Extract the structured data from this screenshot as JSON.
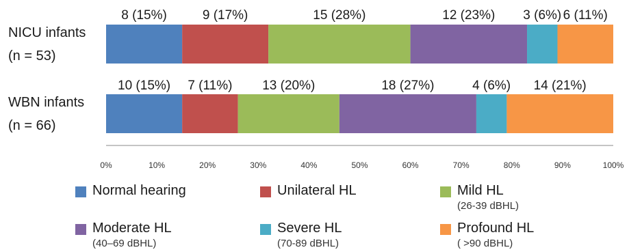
{
  "chart_data": {
    "type": "bar",
    "orientation": "horizontal",
    "stacked": true,
    "percent_stacked": true,
    "categories": [
      {
        "line1": "NICU infants",
        "line2": "(n = 53)"
      },
      {
        "line1": "WBN infants",
        "line2": "(n = 66)"
      }
    ],
    "series": [
      {
        "name": "Normal hearing",
        "sublabel": "",
        "color": "#4f81bd",
        "values": [
          15,
          15
        ],
        "labels": [
          "8 (15%)",
          "10 (15%)"
        ]
      },
      {
        "name": "Unilateral HL",
        "sublabel": "",
        "color": "#c0504d",
        "values": [
          17,
          11
        ],
        "labels": [
          "9 (17%)",
          "7 (11%)"
        ]
      },
      {
        "name": "Mild HL",
        "sublabel": "(26-39 dBHL)",
        "color": "#9bbb59",
        "values": [
          28,
          20
        ],
        "labels": [
          "15 (28%)",
          "13 (20%)"
        ]
      },
      {
        "name": "Moderate HL",
        "sublabel": "(40–69 dBHL)",
        "color": "#8064a2",
        "values": [
          23,
          27
        ],
        "labels": [
          "12 (23%)",
          "18 (27%)"
        ]
      },
      {
        "name": "Severe HL",
        "sublabel": "(70-89 dBHL)",
        "color": "#4bacc6",
        "values": [
          6,
          6
        ],
        "labels": [
          "3 (6%)",
          "4 (6%)"
        ]
      },
      {
        "name": "Profound HL",
        "sublabel": "( >90 dBHL)",
        "color": "#f79646",
        "values": [
          11,
          21
        ],
        "labels": [
          "6 (11%)",
          "14 (21%)"
        ]
      }
    ],
    "xlim": [
      0,
      100
    ],
    "xticks": [
      "0%",
      "10%",
      "20%",
      "30%",
      "40%",
      "50%",
      "60%",
      "70%",
      "80%",
      "90%",
      "100%"
    ],
    "grid": false,
    "legend_position": "bottom"
  }
}
